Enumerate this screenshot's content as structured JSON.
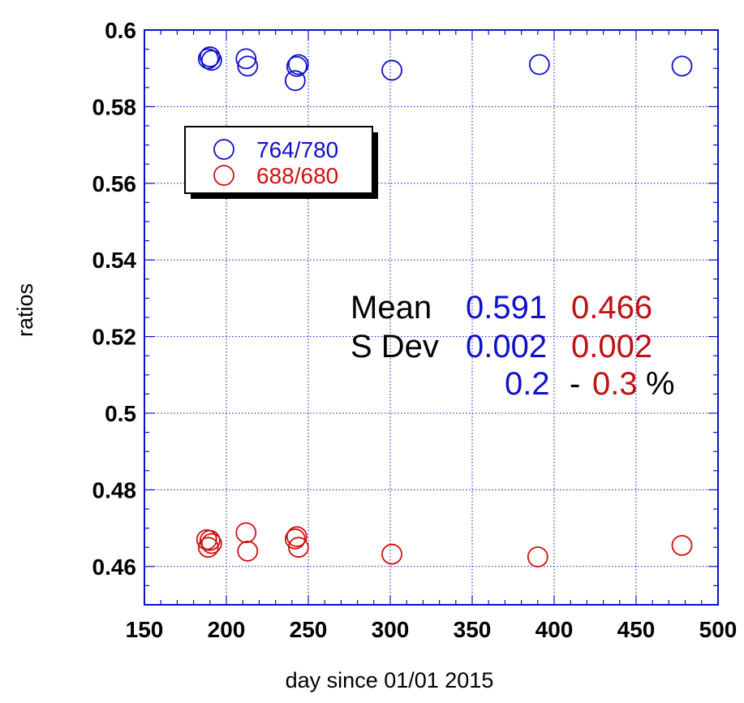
{
  "chart_data": {
    "type": "scatter",
    "title": "",
    "xlabel": "day since 01/01 2015",
    "ylabel": "ratios",
    "xlim": [
      150,
      500
    ],
    "ylim": [
      0.45,
      0.6
    ],
    "x_ticks": [
      150,
      200,
      250,
      300,
      350,
      400,
      450,
      500
    ],
    "x_tick_labels": [
      "150",
      "200",
      "250",
      "300",
      "350",
      "400",
      "450",
      "500"
    ],
    "y_ticks": [
      0.46,
      0.48,
      0.5,
      0.52,
      0.54,
      0.56,
      0.58,
      0.6
    ],
    "y_tick_labels": [
      "0.46",
      "0.48",
      "0.5",
      "0.52",
      "0.54",
      "0.56",
      "0.58",
      "0.6"
    ],
    "grid": true,
    "legend_position": "upper-left",
    "series": [
      {
        "name": "764/780",
        "color": "#1010c8",
        "marker": "open-circle",
        "points": [
          [
            189,
            0.5925
          ],
          [
            190,
            0.593
          ],
          [
            191,
            0.5921
          ],
          [
            212,
            0.5925
          ],
          [
            213,
            0.5906
          ],
          [
            242,
            0.5868
          ],
          [
            243,
            0.5905
          ],
          [
            244,
            0.591
          ],
          [
            301,
            0.5895
          ],
          [
            391,
            0.591
          ],
          [
            478,
            0.5906
          ]
        ]
      },
      {
        "name": "688/680",
        "color": "#d01010",
        "marker": "open-circle",
        "points": [
          [
            188,
            0.467
          ],
          [
            190,
            0.4668
          ],
          [
            189,
            0.465
          ],
          [
            191,
            0.466
          ],
          [
            212,
            0.4688
          ],
          [
            213,
            0.464
          ],
          [
            242,
            0.4672
          ],
          [
            243,
            0.4678
          ],
          [
            244,
            0.465
          ],
          [
            301,
            0.4632
          ],
          [
            390,
            0.4625
          ],
          [
            478,
            0.4655
          ]
        ]
      }
    ],
    "annotations": {
      "mean_label": "Mean",
      "mean_a": "0.591",
      "mean_b": "0.466",
      "sdev_label": "S Dev",
      "sdev_a": "0.002",
      "sdev_b": "0.002",
      "pct_a": "0.2",
      "pct_sep": "-",
      "pct_b": "0.3",
      "pct_unit": "%"
    }
  }
}
